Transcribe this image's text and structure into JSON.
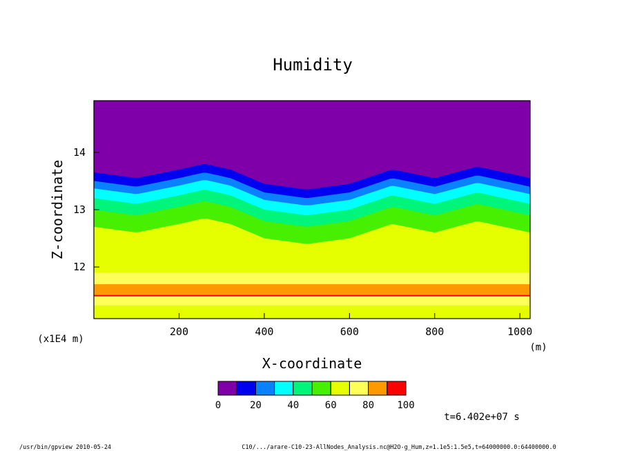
{
  "chart_data": {
    "type": "heatmap",
    "title": "Humidity",
    "xlabel": "X-coordinate",
    "ylabel": "Z-coordinate",
    "x_unit": "(m)",
    "y_unit": "(x1E4 m)",
    "xlim": [
      0,
      1024
    ],
    "ylim": [
      11.1,
      14.9
    ],
    "x_ticks": [
      "200",
      "400",
      "600",
      "800",
      "1000"
    ],
    "y_ticks": [
      "12",
      "13",
      "14"
    ],
    "levels": [
      0,
      10,
      20,
      30,
      40,
      50,
      60,
      70,
      80,
      90,
      100
    ],
    "colorbar_labels": [
      "0",
      "20",
      "40",
      "60",
      "80",
      "100"
    ],
    "colors": [
      "#7f00a8",
      "#0000f0",
      "#0a82ff",
      "#00ffff",
      "#00f57a",
      "#46f000",
      "#e6ff00",
      "#ffff5a",
      "#ff9900",
      "#ff0000",
      "#ff9999"
    ],
    "description_bands": [
      {
        "x": [
          0,
          100,
          200,
          260,
          320,
          400,
          500,
          600,
          700,
          800,
          900,
          1024
        ],
        "top_of_moist_layer_z": [
          13.65,
          13.55,
          13.7,
          13.8,
          13.7,
          13.45,
          13.35,
          13.45,
          13.7,
          13.55,
          13.75,
          13.55
        ]
      }
    ],
    "annotation_time": "t=6.402e+07 s"
  },
  "footer": {
    "left": "/usr/bin/gpview  2010-05-24",
    "right": "C10/.../arare-C10-23-AllNodes_Analysis.nc@H2O-g_Hum,z=1.1e5:1.5e5,t=64000000.0:64400000.0"
  }
}
